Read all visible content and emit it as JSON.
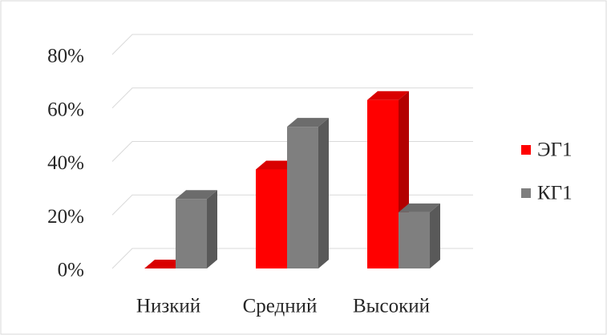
{
  "chart_data": {
    "type": "bar3d",
    "categories": [
      "Низкий",
      "Средний",
      "Высокий"
    ],
    "series": [
      {
        "name": "ЭГ1",
        "color": "#ff0000",
        "values": [
          0,
          37,
          63
        ]
      },
      {
        "name": "КГ1",
        "color": "#7f7f7f",
        "values": [
          26,
          53,
          21
        ]
      }
    ],
    "ylim": [
      0,
      80
    ],
    "yticks": [
      {
        "value": 0,
        "label": "0%"
      },
      {
        "value": 20,
        "label": "20%"
      },
      {
        "value": 40,
        "label": "40%"
      },
      {
        "value": 60,
        "label": "60%"
      },
      {
        "value": 80,
        "label": "80%"
      }
    ],
    "grid": true,
    "legend": "right"
  }
}
